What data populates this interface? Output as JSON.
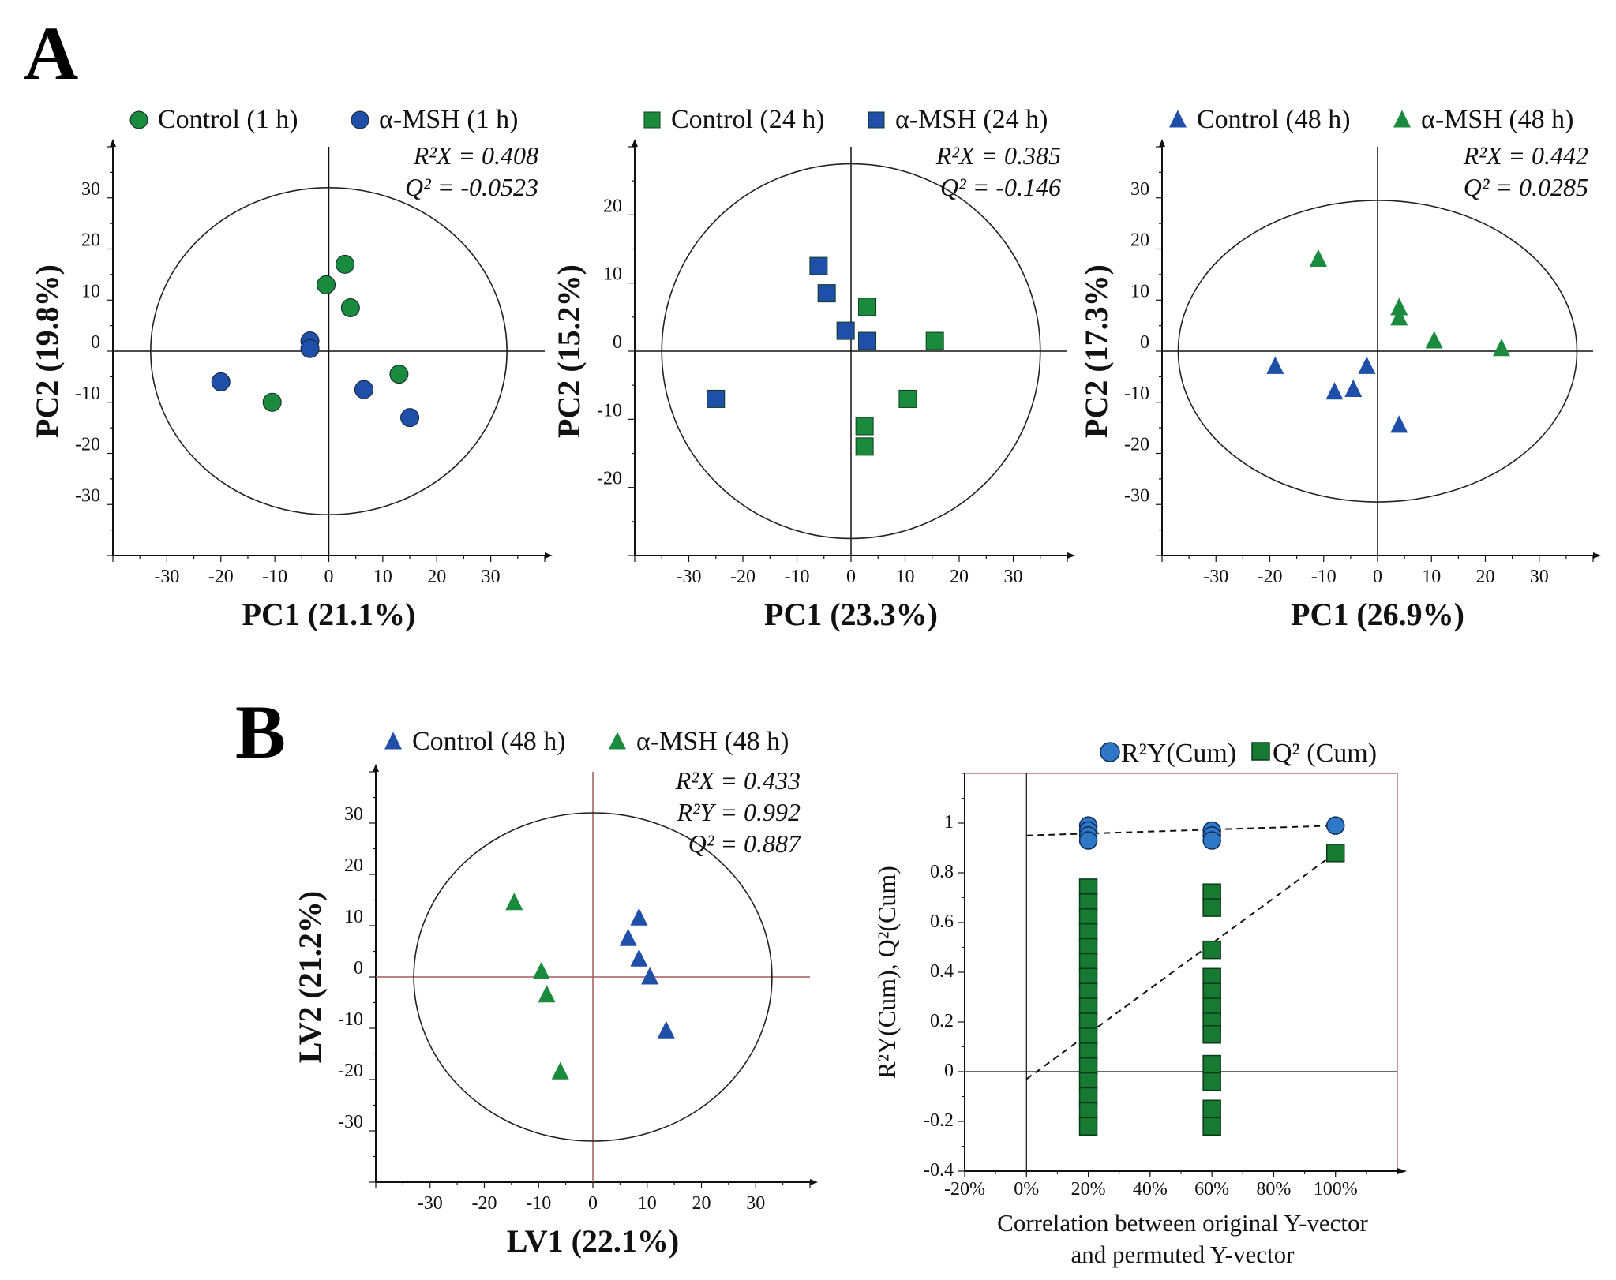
{
  "figure": {
    "panel_labels": [
      "A",
      "B"
    ]
  },
  "colors": {
    "green": "#1a8a3c",
    "blue": "#1f4fa8",
    "blue_light": "#2f78c8",
    "green_dark": "#177a33",
    "axis": "#111111",
    "cross": "#a05a5a"
  },
  "chart_data": [
    {
      "id": "pca1",
      "type": "scatter",
      "xlabel": "PC1 (21.1%)",
      "ylabel": "PC2 (19.8%)",
      "stats": [
        "R²X = 0.408",
        "Q² = -0.0523"
      ],
      "xlim": [
        -40,
        40
      ],
      "ylim": [
        -40,
        40
      ],
      "xticks": [
        -30,
        -20,
        -10,
        0,
        10,
        20,
        30
      ],
      "yticks": [
        30,
        20,
        10,
        0,
        -10,
        -20,
        -30
      ],
      "marker": "circle",
      "ellipse": {
        "rx": 33,
        "ry": 32
      },
      "series": [
        {
          "name": "Control (1 h)",
          "color": "#1a8a3c",
          "points": [
            [
              3,
              17
            ],
            [
              -0.5,
              13
            ],
            [
              4,
              8.5
            ],
            [
              13,
              -4.5
            ],
            [
              -10.5,
              -10
            ]
          ]
        },
        {
          "name": "α-MSH (1 h)",
          "color": "#1f4fa8",
          "points": [
            [
              -3.5,
              2
            ],
            [
              -3.5,
              0.5
            ],
            [
              -20,
              -6
            ],
            [
              6.5,
              -7.5
            ],
            [
              15,
              -13
            ]
          ]
        }
      ]
    },
    {
      "id": "pca2",
      "type": "scatter",
      "xlabel": "PC1 (23.3%)",
      "ylabel": "PC2 (15.2%)",
      "stats": [
        "R²X = 0.385",
        "Q² = -0.146"
      ],
      "xlim": [
        -40,
        40
      ],
      "ylim": [
        -30,
        30
      ],
      "xticks": [
        -30,
        -20,
        -10,
        0,
        10,
        20,
        30
      ],
      "yticks": [
        20,
        10,
        0,
        -10,
        -20
      ],
      "marker": "square",
      "ellipse": {
        "rx": 35,
        "ry": 27.5
      },
      "series": [
        {
          "name": "Control (24 h)",
          "color": "#1a8a3c",
          "points": [
            [
              3,
              6.5
            ],
            [
              15.5,
              1.5
            ],
            [
              10.5,
              -7
            ],
            [
              2.5,
              -11
            ],
            [
              2.5,
              -14
            ]
          ]
        },
        {
          "name": "α-MSH (24 h)",
          "color": "#1f4fa8",
          "points": [
            [
              -6,
              12.5
            ],
            [
              -4.5,
              8.5
            ],
            [
              -1,
              3
            ],
            [
              3,
              1.5
            ],
            [
              -25,
              -7
            ]
          ]
        }
      ]
    },
    {
      "id": "pca3",
      "type": "scatter",
      "xlabel": "PC1 (26.9%)",
      "ylabel": "PC2 (17.3%)",
      "stats": [
        "R²X = 0.442",
        "Q² = 0.0285"
      ],
      "xlim": [
        -40,
        40
      ],
      "ylim": [
        -40,
        40
      ],
      "xticks": [
        -30,
        -20,
        -10,
        0,
        10,
        20,
        30
      ],
      "yticks": [
        30,
        20,
        10,
        0,
        -10,
        -20,
        -30
      ],
      "marker": "triangle",
      "ellipse": {
        "rx": 37,
        "ry": 29.5
      },
      "series": [
        {
          "name": "Control (48 h)",
          "color": "#1f4fa8",
          "points": [
            [
              -19,
              -3
            ],
            [
              -8,
              -8
            ],
            [
              -4.5,
              -7.5
            ],
            [
              -2,
              -3
            ],
            [
              4,
              -14.5
            ]
          ]
        },
        {
          "name": "α-MSH (48 h)",
          "color": "#1a8a3c",
          "points": [
            [
              -11,
              18
            ],
            [
              4,
              8.5
            ],
            [
              4,
              6.5
            ],
            [
              10.5,
              2
            ],
            [
              23,
              0.5
            ]
          ]
        }
      ]
    },
    {
      "id": "plsda",
      "type": "scatter",
      "xlabel": "LV1 (22.1%)",
      "ylabel": "LV2 (21.2%)",
      "stats": [
        "R²X = 0.433",
        "R²Y = 0.992",
        "Q² = 0.887"
      ],
      "xlim": [
        -40,
        40
      ],
      "ylim": [
        -40,
        40
      ],
      "xticks": [
        -30,
        -20,
        -10,
        0,
        10,
        20,
        30
      ],
      "yticks": [
        30,
        20,
        10,
        0,
        -10,
        -20,
        -30
      ],
      "marker": "triangle",
      "ellipse": {
        "rx": 33,
        "ry": 32
      },
      "series": [
        {
          "name": "Control (48 h)",
          "color": "#1f4fa8",
          "points": [
            [
              8.5,
              11.5
            ],
            [
              6.5,
              7.5
            ],
            [
              8.5,
              3.5
            ],
            [
              10.5,
              0
            ],
            [
              13.5,
              -10.5
            ]
          ]
        },
        {
          "name": "α-MSH (48 h)",
          "color": "#1a8a3c",
          "points": [
            [
              -14.5,
              14.5
            ],
            [
              -9.5,
              1
            ],
            [
              -8.5,
              -3.5
            ],
            [
              -6,
              -18.5
            ]
          ]
        }
      ]
    },
    {
      "id": "permutation",
      "type": "scatter",
      "xlabel_lines": [
        "Correlation between original Y-vector",
        "and permuted Y-vector"
      ],
      "ylabel": "R²Y(Cum), Q²(Cum)",
      "xlim": [
        -0.2,
        1.2
      ],
      "ylim": [
        -0.4,
        1.2
      ],
      "xticks": [
        -0.2,
        0,
        0.2,
        0.4,
        0.6,
        0.8,
        1.0
      ],
      "xtick_labels": [
        "-20%",
        "0%",
        "20%",
        "40%",
        "60%",
        "80%",
        "100%"
      ],
      "yticks": [
        1,
        0.8,
        0.6,
        0.4,
        0.2,
        0,
        -0.2,
        -0.4
      ],
      "ytick_labels": [
        "1",
        "0.8",
        "0.6",
        "0.4",
        "0.2",
        "0",
        "-0.2",
        "-0.4"
      ],
      "series": [
        {
          "name": "R²Y(Cum)",
          "marker": "circle",
          "color": "#2f78c8",
          "points": [
            [
              0.2,
              0.99
            ],
            [
              0.2,
              0.97
            ],
            [
              0.2,
              0.95
            ],
            [
              0.2,
              0.93
            ],
            [
              0.6,
              0.97
            ],
            [
              0.6,
              0.95
            ],
            [
              0.6,
              0.93
            ],
            [
              1.0,
              0.99
            ]
          ]
        },
        {
          "name": "Q² (Cum)",
          "marker": "square",
          "color": "#177a33",
          "points": [
            [
              0.2,
              0.74
            ],
            [
              0.2,
              0.68
            ],
            [
              0.2,
              0.62
            ],
            [
              0.2,
              0.56
            ],
            [
              0.2,
              0.5
            ],
            [
              0.2,
              0.44
            ],
            [
              0.2,
              0.38
            ],
            [
              0.2,
              0.32
            ],
            [
              0.2,
              0.26
            ],
            [
              0.2,
              0.2
            ],
            [
              0.2,
              0.14
            ],
            [
              0.2,
              0.08
            ],
            [
              0.2,
              0.02
            ],
            [
              0.2,
              -0.04
            ],
            [
              0.2,
              -0.1
            ],
            [
              0.2,
              -0.16
            ],
            [
              0.2,
              -0.22
            ],
            [
              0.6,
              0.72
            ],
            [
              0.6,
              0.66
            ],
            [
              0.6,
              0.49
            ],
            [
              0.6,
              0.38
            ],
            [
              0.6,
              0.32
            ],
            [
              0.6,
              0.26
            ],
            [
              0.6,
              0.2
            ],
            [
              0.6,
              0.15
            ],
            [
              0.6,
              0.03
            ],
            [
              0.6,
              -0.04
            ],
            [
              0.6,
              -0.15
            ],
            [
              0.6,
              -0.22
            ],
            [
              1.0,
              0.88
            ]
          ]
        }
      ],
      "trend_lines": [
        {
          "name": "R²Y intercept line",
          "from": [
            0,
            0.95
          ],
          "to": [
            1.0,
            0.99
          ]
        },
        {
          "name": "Q² intercept line",
          "from": [
            0,
            -0.03
          ],
          "to": [
            1.0,
            0.88
          ]
        }
      ]
    }
  ]
}
